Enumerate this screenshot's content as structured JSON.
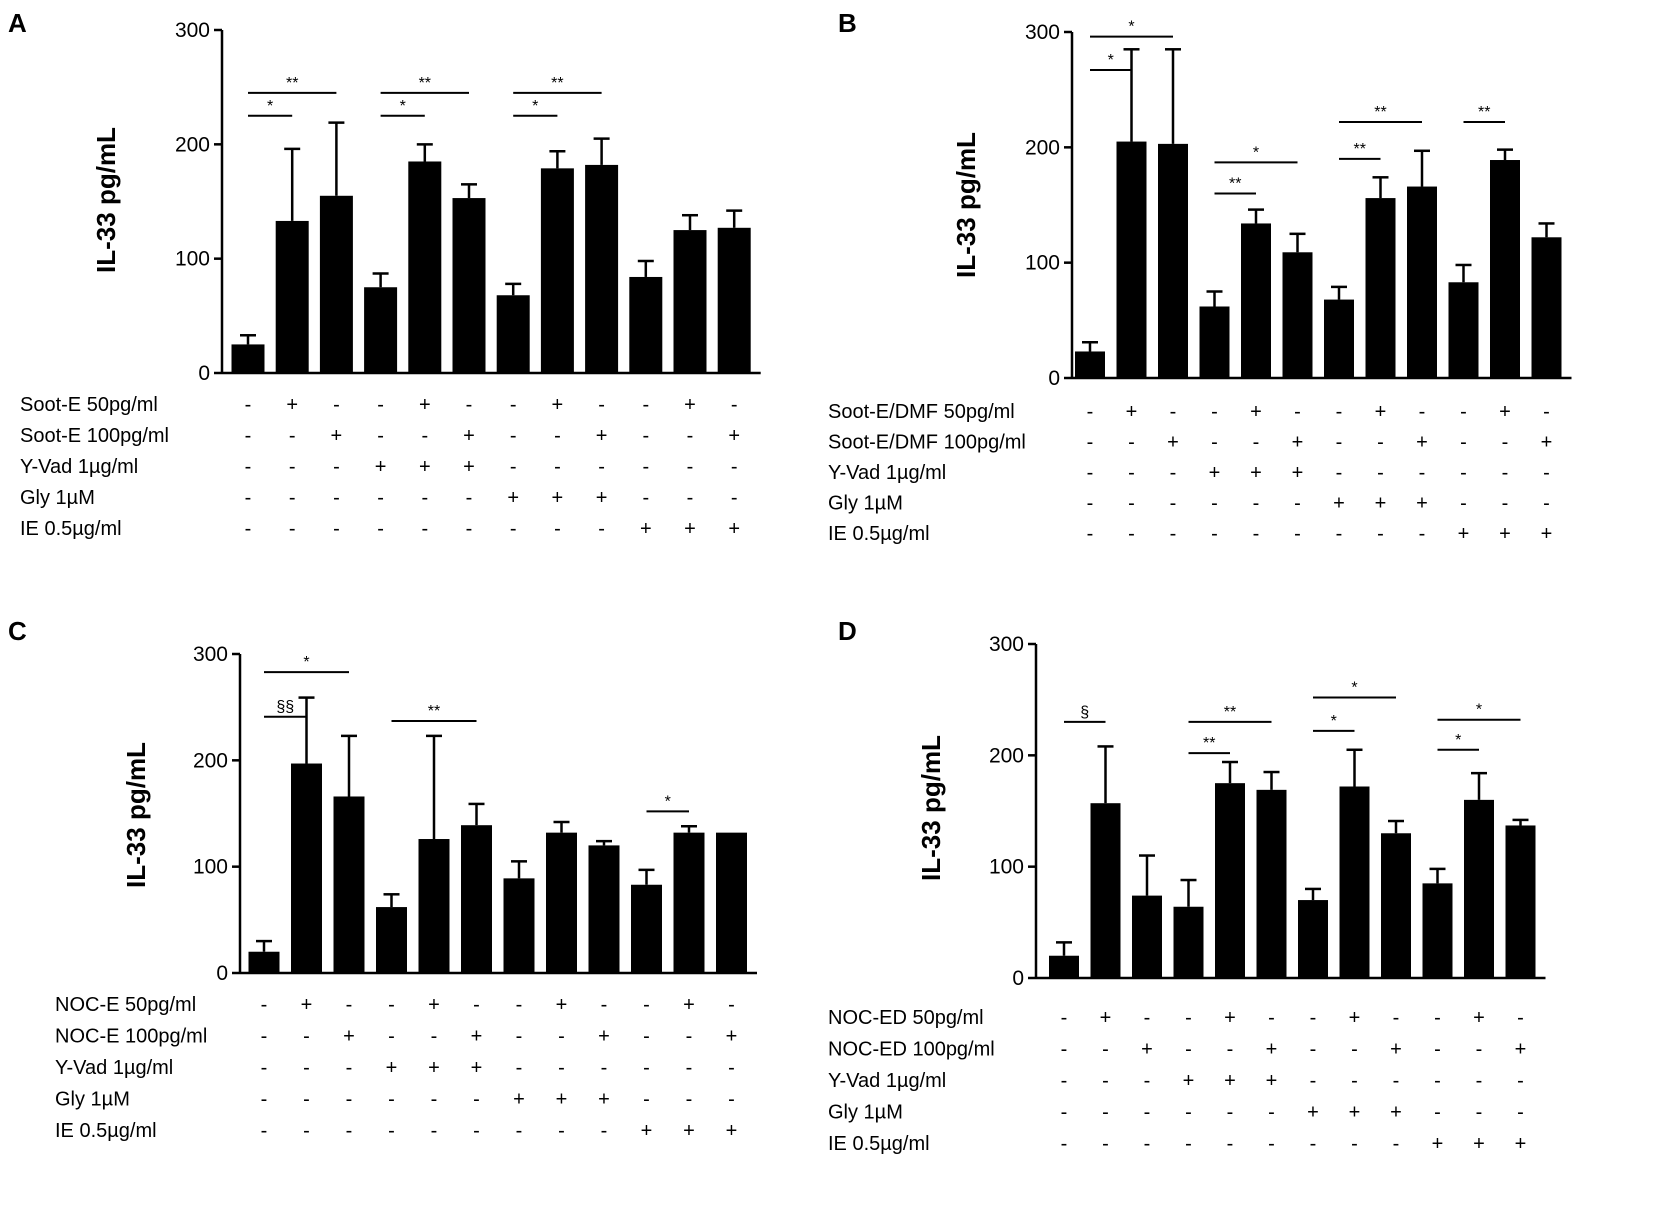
{
  "figure": {
    "panel_letters": [
      "A",
      "B",
      "C",
      "D"
    ]
  },
  "colors": {
    "bar": "#000000",
    "axis": "#000000",
    "background": "#ffffff"
  },
  "chart_data": [
    {
      "panel": "A",
      "type": "bar",
      "title": "",
      "xlabel": "",
      "ylabel": "IL-33 pg/mL",
      "ylim": [
        0,
        300
      ],
      "yticks": [
        0,
        100,
        200,
        300
      ],
      "grid": false,
      "values": [
        25,
        133,
        155,
        75,
        185,
        153,
        68,
        179,
        182,
        84,
        125,
        127
      ],
      "errors": [
        8,
        63,
        64,
        12,
        15,
        12,
        10,
        15,
        23,
        14,
        13,
        15
      ],
      "conditions": [
        {
          "label": "Soot-E 50pg/ml",
          "signs": [
            "-",
            "+",
            "-",
            "-",
            "+",
            "-",
            "-",
            "+",
            "-",
            "-",
            "+",
            "-"
          ]
        },
        {
          "label": "Soot-E 100pg/ml",
          "signs": [
            "-",
            "-",
            "+",
            "-",
            "-",
            "+",
            "-",
            "-",
            "+",
            "-",
            "-",
            "+"
          ]
        },
        {
          "label": "Y-Vad 1µg/ml",
          "signs": [
            "-",
            "-",
            "-",
            "+",
            "+",
            "+",
            "-",
            "-",
            "-",
            "-",
            "-",
            "-"
          ]
        },
        {
          "label": "Gly 1µM",
          "signs": [
            "-",
            "-",
            "-",
            "-",
            "-",
            "-",
            "+",
            "+",
            "+",
            "-",
            "-",
            "-"
          ]
        },
        {
          "label": "IE 0.5µg/ml",
          "signs": [
            "-",
            "-",
            "-",
            "-",
            "-",
            "-",
            "-",
            "-",
            "-",
            "+",
            "+",
            "+"
          ]
        }
      ],
      "significance": [
        {
          "from": 1,
          "to": 2,
          "level": 225,
          "label": "*"
        },
        {
          "from": 1,
          "to": 3,
          "level": 245,
          "label": "**"
        },
        {
          "from": 4,
          "to": 5,
          "level": 225,
          "label": "*"
        },
        {
          "from": 4,
          "to": 6,
          "level": 245,
          "label": "**"
        },
        {
          "from": 7,
          "to": 8,
          "level": 225,
          "label": "*"
        },
        {
          "from": 7,
          "to": 9,
          "level": 245,
          "label": "**"
        }
      ]
    },
    {
      "panel": "B",
      "type": "bar",
      "title": "",
      "xlabel": "",
      "ylabel": "IL-33 pg/mL",
      "ylim": [
        0,
        300
      ],
      "yticks": [
        0,
        100,
        200,
        300
      ],
      "grid": false,
      "values": [
        23,
        205,
        203,
        62,
        134,
        109,
        68,
        156,
        166,
        83,
        189,
        122
      ],
      "errors": [
        8,
        80,
        82,
        13,
        12,
        16,
        11,
        18,
        31,
        15,
        9,
        12
      ],
      "conditions": [
        {
          "label": "Soot-E/DMF 50pg/ml",
          "signs": [
            "-",
            "+",
            "-",
            "-",
            "+",
            "-",
            "-",
            "+",
            "-",
            "-",
            "+",
            "-"
          ]
        },
        {
          "label": "Soot-E/DMF 100pg/ml",
          "signs": [
            "-",
            "-",
            "+",
            "-",
            "-",
            "+",
            "-",
            "-",
            "+",
            "-",
            "-",
            "+"
          ]
        },
        {
          "label": "Y-Vad 1µg/ml",
          "signs": [
            "-",
            "-",
            "-",
            "+",
            "+",
            "+",
            "-",
            "-",
            "-",
            "-",
            "-",
            "-"
          ]
        },
        {
          "label": "Gly 1µM",
          "signs": [
            "-",
            "-",
            "-",
            "-",
            "-",
            "-",
            "+",
            "+",
            "+",
            "-",
            "-",
            "-"
          ]
        },
        {
          "label": "IE 0.5µg/ml",
          "signs": [
            "-",
            "-",
            "-",
            "-",
            "-",
            "-",
            "-",
            "-",
            "-",
            "+",
            "+",
            "+"
          ]
        }
      ],
      "significance": [
        {
          "from": 1,
          "to": 2,
          "level": 267,
          "label": "*"
        },
        {
          "from": 1,
          "to": 3,
          "level": 296,
          "label": "*"
        },
        {
          "from": 4,
          "to": 5,
          "level": 160,
          "label": "**"
        },
        {
          "from": 4,
          "to": 6,
          "level": 187,
          "label": "*"
        },
        {
          "from": 7,
          "to": 8,
          "level": 190,
          "label": "**"
        },
        {
          "from": 7,
          "to": 9,
          "level": 222,
          "label": "**"
        },
        {
          "from": 10,
          "to": 11,
          "level": 222,
          "label": "**"
        }
      ]
    },
    {
      "panel": "C",
      "type": "bar",
      "title": "",
      "xlabel": "",
      "ylabel": "IL-33 pg/mL",
      "ylim": [
        0,
        300
      ],
      "yticks": [
        0,
        100,
        200,
        300
      ],
      "grid": false,
      "values": [
        20,
        197,
        166,
        62,
        126,
        139,
        89,
        132,
        120,
        83,
        132,
        132
      ],
      "errors": [
        10,
        62,
        57,
        12,
        97,
        20,
        16,
        10,
        4,
        14,
        6,
        0
      ],
      "conditions": [
        {
          "label": "NOC-E 50pg/ml",
          "signs": [
            "-",
            "+",
            "-",
            "-",
            "+",
            "-",
            "-",
            "+",
            "-",
            "-",
            "+",
            "-"
          ]
        },
        {
          "label": "NOC-E 100pg/ml",
          "signs": [
            "-",
            "-",
            "+",
            "-",
            "-",
            "+",
            "-",
            "-",
            "+",
            "-",
            "-",
            "+"
          ]
        },
        {
          "label": "Y-Vad 1µg/ml",
          "signs": [
            "-",
            "-",
            "-",
            "+",
            "+",
            "+",
            "-",
            "-",
            "-",
            "-",
            "-",
            "-"
          ]
        },
        {
          "label": "Gly 1µM",
          "signs": [
            "-",
            "-",
            "-",
            "-",
            "-",
            "-",
            "+",
            "+",
            "+",
            "-",
            "-",
            "-"
          ]
        },
        {
          "label": "IE 0.5µg/ml",
          "signs": [
            "-",
            "-",
            "-",
            "-",
            "-",
            "-",
            "-",
            "-",
            "-",
            "+",
            "+",
            "+"
          ]
        }
      ],
      "significance": [
        {
          "from": 1,
          "to": 2,
          "level": 241,
          "label": "§§"
        },
        {
          "from": 1,
          "to": 3,
          "level": 283,
          "label": "*"
        },
        {
          "from": 4,
          "to": 6,
          "level": 237,
          "label": "**"
        },
        {
          "from": 10,
          "to": 11,
          "level": 152,
          "label": "*"
        }
      ]
    },
    {
      "panel": "D",
      "type": "bar",
      "title": "",
      "xlabel": "",
      "ylabel": "IL-33 pg/mL",
      "ylim": [
        0,
        300
      ],
      "yticks": [
        0,
        100,
        200,
        300
      ],
      "grid": false,
      "values": [
        20,
        157,
        74,
        64,
        175,
        169,
        70,
        172,
        130,
        85,
        160,
        137
      ],
      "errors": [
        12,
        51,
        36,
        24,
        19,
        16,
        10,
        33,
        11,
        13,
        24,
        5
      ],
      "conditions": [
        {
          "label": "NOC-ED 50pg/ml",
          "signs": [
            "-",
            "+",
            "-",
            "-",
            "+",
            "-",
            "-",
            "+",
            "-",
            "-",
            "+",
            "-"
          ]
        },
        {
          "label": "NOC-ED 100pg/ml",
          "signs": [
            "-",
            "-",
            "+",
            "-",
            "-",
            "+",
            "-",
            "-",
            "+",
            "-",
            "-",
            "+"
          ]
        },
        {
          "label": "Y-Vad 1µg/ml",
          "signs": [
            "-",
            "-",
            "-",
            "+",
            "+",
            "+",
            "-",
            "-",
            "-",
            "-",
            "-",
            "-"
          ]
        },
        {
          "label": "Gly 1µM",
          "signs": [
            "-",
            "-",
            "-",
            "-",
            "-",
            "-",
            "+",
            "+",
            "+",
            "-",
            "-",
            "-"
          ]
        },
        {
          "label": "IE 0.5µg/ml",
          "signs": [
            "-",
            "-",
            "-",
            "-",
            "-",
            "-",
            "-",
            "-",
            "-",
            "+",
            "+",
            "+"
          ]
        }
      ],
      "significance": [
        {
          "from": 1,
          "to": 2,
          "level": 230,
          "label": "§"
        },
        {
          "from": 4,
          "to": 5,
          "level": 202,
          "label": "**"
        },
        {
          "from": 4,
          "to": 6,
          "level": 230,
          "label": "**"
        },
        {
          "from": 7,
          "to": 8,
          "level": 222,
          "label": "*"
        },
        {
          "from": 7,
          "to": 9,
          "level": 252,
          "label": "*"
        },
        {
          "from": 10,
          "to": 11,
          "level": 205,
          "label": "*"
        },
        {
          "from": 10,
          "to": 12,
          "level": 232,
          "label": "*"
        }
      ]
    }
  ]
}
